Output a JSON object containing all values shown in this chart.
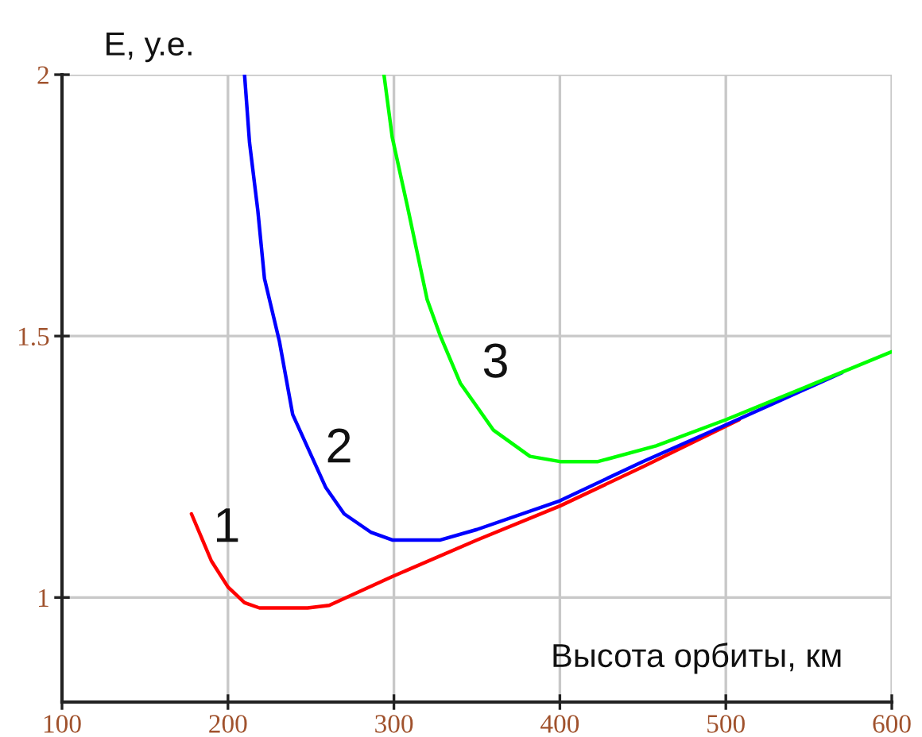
{
  "chart_data": {
    "type": "line",
    "xlabel": "Высота орбиты, км",
    "ylabel": "E, у.е.",
    "xlim": [
      100,
      600
    ],
    "ylim": [
      0.8,
      2
    ],
    "xticks": [
      100,
      200,
      300,
      400,
      500,
      600
    ],
    "yticks": [
      1,
      1.5,
      2
    ],
    "grid": true,
    "series": [
      {
        "name": "1",
        "color": "#ff0000",
        "x": [
          178,
          190,
          200,
          210,
          219,
          248,
          261,
          299,
          350,
          400,
          450,
          508
        ],
        "values": [
          1.16,
          1.07,
          1.02,
          0.99,
          0.98,
          0.98,
          0.985,
          1.04,
          1.11,
          1.175,
          1.25,
          1.34
        ]
      },
      {
        "name": "2",
        "color": "#0000ff",
        "x": [
          210,
          213,
          218,
          222,
          231,
          239,
          259,
          270,
          286,
          299,
          328,
          350,
          400,
          450,
          500,
          570
        ],
        "values": [
          2.0,
          1.87,
          1.74,
          1.61,
          1.49,
          1.35,
          1.21,
          1.16,
          1.125,
          1.11,
          1.11,
          1.13,
          1.185,
          1.26,
          1.33,
          1.43
        ]
      },
      {
        "name": "3",
        "color": "#00ff00",
        "x": [
          294,
          299,
          308,
          320,
          328,
          340,
          360,
          382,
          400,
          423,
          458,
          500,
          554,
          600
        ],
        "values": [
          2.0,
          1.88,
          1.75,
          1.57,
          1.5,
          1.41,
          1.32,
          1.27,
          1.26,
          1.26,
          1.29,
          1.34,
          1.41,
          1.47
        ]
      }
    ]
  }
}
